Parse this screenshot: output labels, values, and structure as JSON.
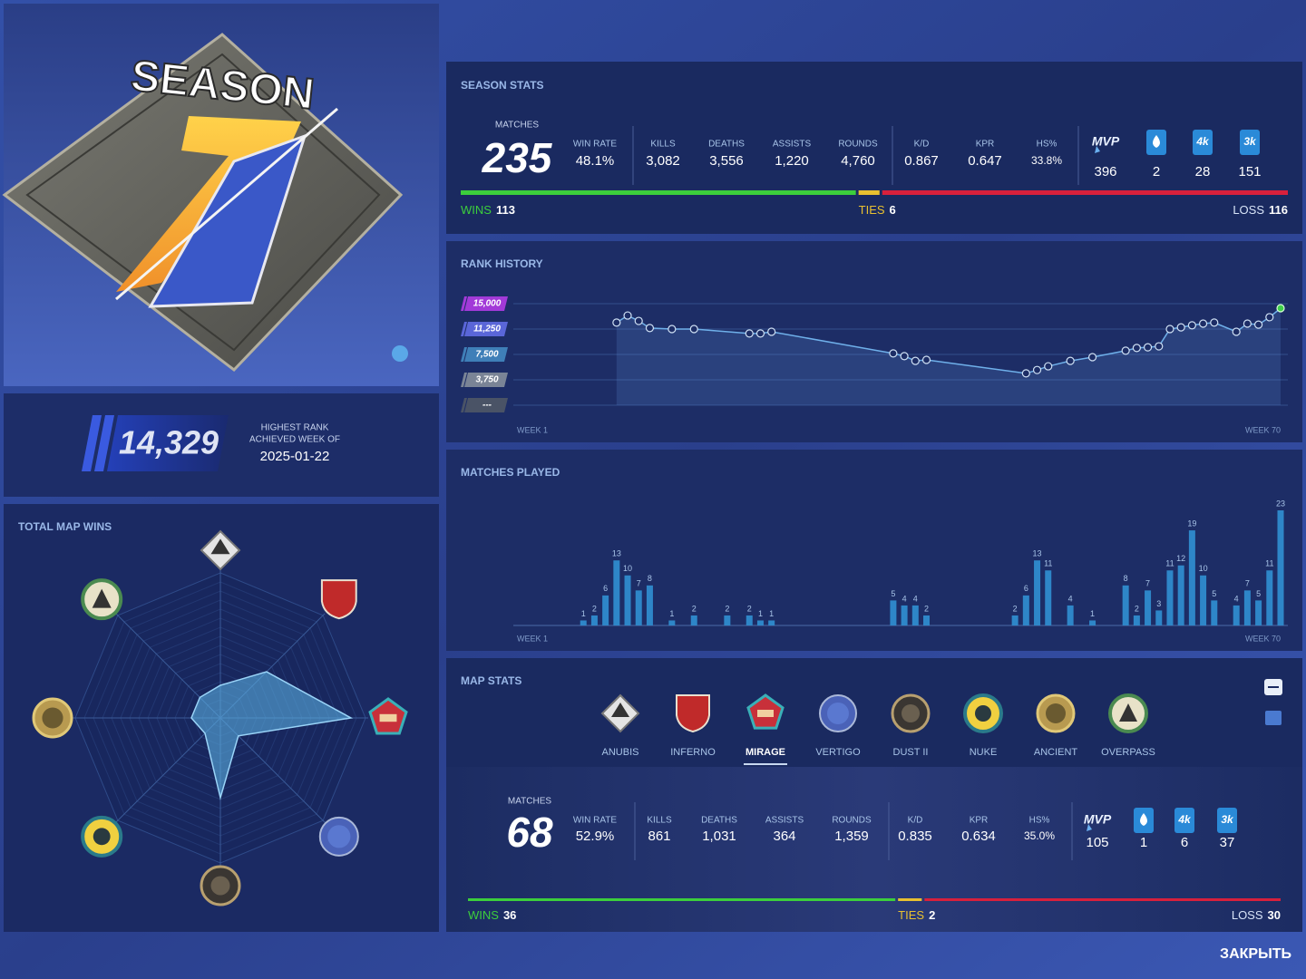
{
  "season_logo": {
    "title": "SEASON"
  },
  "highest_rank": {
    "value": "14,329",
    "label": "HIGHEST RANK",
    "sublabel": "ACHIEVED WEEK OF",
    "date": "2025-01-22"
  },
  "season_stats": {
    "title": "SEASON STATS",
    "matches": {
      "label": "MATCHES",
      "value": "235"
    },
    "stats": [
      {
        "label": "WIN RATE",
        "value": "48.1%"
      },
      {
        "label": "KILLS",
        "value": "3,082"
      },
      {
        "label": "DEATHS",
        "value": "3,556"
      },
      {
        "label": "ASSISTS",
        "value": "1,220"
      },
      {
        "label": "ROUNDS",
        "value": "4,760"
      },
      {
        "label": "K/D",
        "value": "0.867"
      },
      {
        "label": "KPR",
        "value": "0.647"
      },
      {
        "label": "HS%",
        "value": "33.8%"
      }
    ],
    "badges": [
      {
        "icon": "MVP",
        "value": "396"
      },
      {
        "value": "2"
      },
      {
        "icon": "4k",
        "value": "28"
      },
      {
        "icon": "3k",
        "value": "151"
      }
    ],
    "record": {
      "wins_label": "WINS",
      "wins": 113,
      "ties_label": "TIES",
      "ties": 6,
      "loss_label": "LOSS",
      "loss": 116,
      "colors": [
        "#3ccf3c",
        "#e8c030",
        "#d8203c"
      ]
    }
  },
  "chart_data": [
    {
      "type": "line",
      "title": "RANK HISTORY",
      "x": [
        10,
        11,
        12,
        13,
        15,
        17,
        22,
        23,
        24,
        35,
        36,
        37,
        38,
        47,
        48,
        49,
        51,
        53,
        56,
        57,
        58,
        59,
        60,
        61,
        62,
        63,
        64,
        66,
        67,
        68,
        69,
        70
      ],
      "values": [
        12200,
        13250,
        12450,
        11400,
        11250,
        11250,
        10600,
        10600,
        10850,
        7650,
        7250,
        6550,
        6700,
        4700,
        5200,
        5750,
        6550,
        7100,
        8050,
        8450,
        8550,
        8700,
        11250,
        11500,
        11800,
        12050,
        12200,
        10850,
        12050,
        11900,
        13000,
        14329
      ],
      "xlim": [
        1,
        70
      ],
      "xticks": [
        {
          "value": 1,
          "label": "WEEK 1"
        },
        {
          "value": 70,
          "label": "WEEK 70"
        }
      ],
      "ylim": [
        0,
        15000
      ],
      "yticks": [
        {
          "value": 0,
          "label": "---"
        },
        {
          "value": 3750,
          "label": "3,750"
        },
        {
          "value": 7500,
          "label": "7,500"
        },
        {
          "value": 11250,
          "label": "11,250"
        },
        {
          "value": 15000,
          "label": "15,000"
        }
      ],
      "tick_colors": [
        "#4a5366",
        "#7a8496",
        "#3f7fb8",
        "#5a66d8",
        "#a23ad8"
      ],
      "color": "#6fb0ea",
      "highlight_color": "#3fcf4a",
      "grid": true
    },
    {
      "type": "bar",
      "title": "MATCHES PLAYED",
      "x": [
        7,
        8,
        9,
        10,
        11,
        12,
        13,
        15,
        17,
        20,
        22,
        23,
        24,
        35,
        36,
        37,
        38,
        46,
        47,
        48,
        49,
        51,
        53,
        56,
        57,
        58,
        59,
        60,
        61,
        62,
        63,
        64,
        66,
        67,
        68,
        69,
        70
      ],
      "values": [
        1,
        2,
        6,
        13,
        10,
        7,
        8,
        1,
        2,
        2,
        2,
        1,
        1,
        5,
        4,
        4,
        2,
        2,
        6,
        13,
        11,
        4,
        1,
        8,
        2,
        7,
        3,
        11,
        12,
        19,
        10,
        5,
        4,
        7,
        5,
        11,
        23
      ],
      "xlim": [
        1,
        70
      ],
      "xticks": [
        {
          "value": 1,
          "label": "WEEK 1"
        },
        {
          "value": 70,
          "label": "WEEK 70"
        }
      ],
      "color": "#2e86c8"
    },
    {
      "type": "radar",
      "title": "TOTAL MAP WINS",
      "values": [
        9,
        18,
        36,
        7,
        22,
        6,
        8,
        8
      ],
      "rlim": [
        0,
        40
      ],
      "color": "#5aaee0"
    }
  ],
  "map_stats": {
    "title": "MAP STATS",
    "maps": [
      "ANUBIS",
      "INFERNO",
      "MIRAGE",
      "VERTIGO",
      "DUST II",
      "NUKE",
      "ANCIENT",
      "OVERPASS"
    ],
    "selected": 2,
    "matches": {
      "label": "MATCHES",
      "value": "68"
    },
    "stats": [
      {
        "label": "WIN RATE",
        "value": "52.9%"
      },
      {
        "label": "KILLS",
        "value": "861"
      },
      {
        "label": "DEATHS",
        "value": "1,031"
      },
      {
        "label": "ASSISTS",
        "value": "364"
      },
      {
        "label": "ROUNDS",
        "value": "1,359"
      },
      {
        "label": "K/D",
        "value": "0.835"
      },
      {
        "label": "KPR",
        "value": "0.634"
      },
      {
        "label": "HS%",
        "value": "35.0%"
      }
    ],
    "badges": [
      {
        "icon": "MVP",
        "value": "105"
      },
      {
        "value": "1"
      },
      {
        "icon": "4k",
        "value": "6"
      },
      {
        "icon": "3k",
        "value": "37"
      }
    ],
    "record": {
      "wins_label": "WINS",
      "wins": 36,
      "ties_label": "TIES",
      "ties": 2,
      "loss_label": "LOSS",
      "loss": 30,
      "colors": [
        "#3ccf3c",
        "#e8c030",
        "#d8203c"
      ]
    }
  },
  "close": "ЗАКРЫТЬ"
}
